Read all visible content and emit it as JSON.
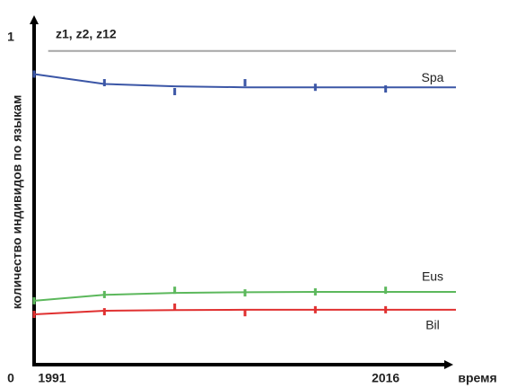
{
  "chart_data": {
    "type": "line",
    "x_label": "время",
    "y_label": "количество индивидов по языкам",
    "xlim": [
      1991,
      2021
    ],
    "xticks": [
      1991,
      2016
    ],
    "ylim": [
      0,
      1
    ],
    "yticks": [
      0,
      1
    ],
    "reference": {
      "name": "z1, z2, z12",
      "color": "#a6a6a6",
      "x": [
        1992,
        2021
      ],
      "values": [
        0.96,
        0.96
      ]
    },
    "series": [
      {
        "name": "Spa",
        "color": "#3b56a6",
        "x": [
          1991,
          1996,
          2001,
          2006,
          2011,
          2016,
          2021
        ],
        "values": [
          0.89,
          0.86,
          0.853,
          0.85,
          0.85,
          0.85,
          0.85
        ],
        "points_x": [
          1991,
          1996,
          2001,
          2006,
          2011,
          2016
        ],
        "points": [
          0.89,
          0.864,
          0.837,
          0.864,
          0.85,
          0.845
        ]
      },
      {
        "name": "Eus",
        "color": "#5cb85c",
        "x": [
          1991,
          1996,
          2001,
          2006,
          2011,
          2016,
          2021
        ],
        "values": [
          0.204,
          0.222,
          0.228,
          0.23,
          0.231,
          0.231,
          0.231
        ],
        "points_x": [
          1991,
          1996,
          2001,
          2006,
          2011,
          2016
        ],
        "points": [
          0.204,
          0.223,
          0.236,
          0.228,
          0.231,
          0.236
        ]
      },
      {
        "name": "Bil",
        "color": "#e03030",
        "x": [
          1991,
          1996,
          2001,
          2006,
          2011,
          2016,
          2021
        ],
        "values": [
          0.163,
          0.174,
          0.176,
          0.177,
          0.177,
          0.177,
          0.177
        ],
        "points_x": [
          1991,
          1996,
          2001,
          2006,
          2011,
          2016
        ],
        "points": [
          0.163,
          0.171,
          0.185,
          0.168,
          0.177,
          0.177
        ]
      }
    ]
  }
}
